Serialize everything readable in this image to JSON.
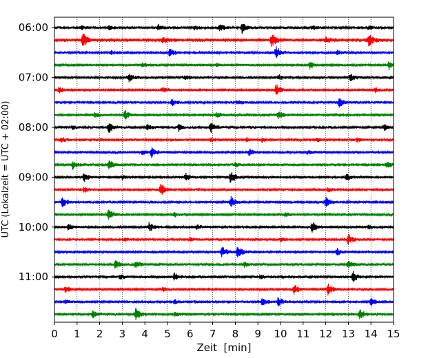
{
  "chart_data": {
    "type": "line",
    "title": "",
    "xlabel": "Zeit  [min]",
    "ylabel": "UTC (Lokalzeit = UTC + 02:00)",
    "xlim": [
      0,
      15
    ],
    "x_ticks": [
      "0",
      "1",
      "2",
      "3",
      "4",
      "5",
      "6",
      "7",
      "8",
      "9",
      "10",
      "11",
      "12",
      "13",
      "14",
      "15"
    ],
    "y_tick_labels": [
      "06:00",
      "07:00",
      "08:00",
      "09:00",
      "10:00",
      "11:00"
    ],
    "grid": "vertical dotted at each minute",
    "traces_per_hour": 4,
    "minutes_per_trace": 15,
    "start_time": "06:00",
    "colors": [
      "#000000",
      "#ff0000",
      "#0000ff",
      "#008000"
    ],
    "series": [
      {
        "start": "06:00",
        "color": "#000000",
        "noise": 2,
        "events": [
          {
            "t": 1.2,
            "amp": 3
          },
          {
            "t": 2.4,
            "amp": 3
          },
          {
            "t": 4.6,
            "amp": 4
          },
          {
            "t": 6.2,
            "amp": 3
          },
          {
            "t": 7.3,
            "amp": 6
          },
          {
            "t": 8.3,
            "amp": 8
          },
          {
            "t": 11.4,
            "amp": 3
          },
          {
            "t": 13.9,
            "amp": 3
          }
        ]
      },
      {
        "start": "06:15",
        "color": "#ff0000",
        "noise": 3,
        "events": [
          {
            "t": 1.25,
            "amp": 10
          },
          {
            "t": 4.8,
            "amp": 3
          },
          {
            "t": 9.6,
            "amp": 9
          },
          {
            "t": 12.0,
            "amp": 3
          },
          {
            "t": 13.9,
            "amp": 9
          }
        ]
      },
      {
        "start": "06:30",
        "color": "#0000ff",
        "noise": 2,
        "events": [
          {
            "t": 2.5,
            "amp": 3
          },
          {
            "t": 5.1,
            "amp": 7
          },
          {
            "t": 9.8,
            "amp": 9
          },
          {
            "t": 12.5,
            "amp": 3
          }
        ]
      },
      {
        "start": "06:45",
        "color": "#008000",
        "noise": 2,
        "events": [
          {
            "t": 3.9,
            "amp": 3
          },
          {
            "t": 7.2,
            "amp": 3
          },
          {
            "t": 11.3,
            "amp": 6
          },
          {
            "t": 14.8,
            "amp": 6
          }
        ]
      },
      {
        "start": "07:00",
        "color": "#000000",
        "noise": 2,
        "events": [
          {
            "t": 3.3,
            "amp": 6
          },
          {
            "t": 5.8,
            "amp": 3
          },
          {
            "t": 9.9,
            "amp": 4
          },
          {
            "t": 13.1,
            "amp": 5
          }
        ]
      },
      {
        "start": "07:15",
        "color": "#ff0000",
        "noise": 2,
        "events": [
          {
            "t": 0.2,
            "amp": 4
          },
          {
            "t": 4.8,
            "amp": 4
          },
          {
            "t": 9.8,
            "amp": 9
          },
          {
            "t": 14.2,
            "amp": 3
          }
        ]
      },
      {
        "start": "07:30",
        "color": "#0000ff",
        "noise": 2,
        "events": [
          {
            "t": 5.2,
            "amp": 5
          },
          {
            "t": 8.1,
            "amp": 3
          },
          {
            "t": 12.6,
            "amp": 7
          }
        ]
      },
      {
        "start": "07:45",
        "color": "#008000",
        "noise": 2,
        "events": [
          {
            "t": 1.8,
            "amp": 4
          },
          {
            "t": 3.1,
            "amp": 7
          },
          {
            "t": 7.2,
            "amp": 3
          },
          {
            "t": 9.9,
            "amp": 6
          }
        ]
      },
      {
        "start": "08:00",
        "color": "#000000",
        "noise": 2,
        "events": [
          {
            "t": 0.8,
            "amp": 3
          },
          {
            "t": 2.4,
            "amp": 8
          },
          {
            "t": 4.1,
            "amp": 4
          },
          {
            "t": 5.5,
            "amp": 5
          },
          {
            "t": 6.9,
            "amp": 8
          },
          {
            "t": 14.6,
            "amp": 4
          }
        ]
      },
      {
        "start": "08:15",
        "color": "#ff0000",
        "noise": 2,
        "events": [
          {
            "t": 0.3,
            "amp": 4
          },
          {
            "t": 6.9,
            "amp": 3
          },
          {
            "t": 8.5,
            "amp": 3
          },
          {
            "t": 9.2,
            "amp": 3
          },
          {
            "t": 11.6,
            "amp": 3
          },
          {
            "t": 13.4,
            "amp": 3
          }
        ]
      },
      {
        "start": "08:30",
        "color": "#0000ff",
        "noise": 2,
        "events": [
          {
            "t": 3.9,
            "amp": 3
          },
          {
            "t": 4.3,
            "amp": 7
          },
          {
            "t": 8.6,
            "amp": 5
          },
          {
            "t": 11.2,
            "amp": 3
          }
        ]
      },
      {
        "start": "08:45",
        "color": "#008000",
        "noise": 2,
        "events": [
          {
            "t": 0.8,
            "amp": 6
          },
          {
            "t": 2.4,
            "amp": 7
          },
          {
            "t": 8.0,
            "amp": 3
          },
          {
            "t": 14.7,
            "amp": 5
          }
        ]
      },
      {
        "start": "09:00",
        "color": "#000000",
        "noise": 2,
        "events": [
          {
            "t": 1.3,
            "amp": 7
          },
          {
            "t": 3.0,
            "amp": 3
          },
          {
            "t": 5.8,
            "amp": 6
          },
          {
            "t": 7.8,
            "amp": 10
          },
          {
            "t": 12.9,
            "amp": 5
          }
        ]
      },
      {
        "start": "09:15",
        "color": "#ff0000",
        "noise": 2,
        "events": [
          {
            "t": 1.3,
            "amp": 4
          },
          {
            "t": 4.7,
            "amp": 9
          },
          {
            "t": 12.1,
            "amp": 3
          }
        ]
      },
      {
        "start": "09:30",
        "color": "#0000ff",
        "noise": 2,
        "events": [
          {
            "t": 0.35,
            "amp": 7
          },
          {
            "t": 7.8,
            "amp": 8
          },
          {
            "t": 12.0,
            "amp": 8
          }
        ]
      },
      {
        "start": "09:45",
        "color": "#008000",
        "noise": 2,
        "events": [
          {
            "t": 2.4,
            "amp": 7
          },
          {
            "t": 5.3,
            "amp": 3
          },
          {
            "t": 10.2,
            "amp": 3
          }
        ]
      },
      {
        "start": "10:00",
        "color": "#000000",
        "noise": 2,
        "events": [
          {
            "t": 0.6,
            "amp": 4
          },
          {
            "t": 4.2,
            "amp": 7
          },
          {
            "t": 6.3,
            "amp": 3
          },
          {
            "t": 11.4,
            "amp": 8
          },
          {
            "t": 13.9,
            "amp": 3
          }
        ]
      },
      {
        "start": "10:15",
        "color": "#ff0000",
        "noise": 2,
        "events": [
          {
            "t": 3.1,
            "amp": 3
          },
          {
            "t": 6.0,
            "amp": 3
          },
          {
            "t": 10.0,
            "amp": 3
          },
          {
            "t": 13.0,
            "amp": 8
          }
        ]
      },
      {
        "start": "10:30",
        "color": "#0000ff",
        "noise": 2,
        "events": [
          {
            "t": 7.4,
            "amp": 8
          },
          {
            "t": 8.1,
            "amp": 9
          },
          {
            "t": 12.5,
            "amp": 5
          }
        ]
      },
      {
        "start": "10:45",
        "color": "#008000",
        "noise": 2,
        "events": [
          {
            "t": 2.7,
            "amp": 7
          },
          {
            "t": 3.6,
            "amp": 6
          },
          {
            "t": 8.4,
            "amp": 4
          },
          {
            "t": 13.0,
            "amp": 6
          }
        ]
      },
      {
        "start": "11:00",
        "color": "#000000",
        "noise": 2,
        "events": [
          {
            "t": 2.9,
            "amp": 3
          },
          {
            "t": 5.3,
            "amp": 6
          },
          {
            "t": 9.1,
            "amp": 3
          },
          {
            "t": 13.2,
            "amp": 8
          }
        ]
      },
      {
        "start": "11:15",
        "color": "#ff0000",
        "noise": 2,
        "events": [
          {
            "t": 0.5,
            "amp": 5
          },
          {
            "t": 4.8,
            "amp": 3
          },
          {
            "t": 10.6,
            "amp": 7
          },
          {
            "t": 12.1,
            "amp": 8
          }
        ]
      },
      {
        "start": "11:30",
        "color": "#0000ff",
        "noise": 2,
        "events": [
          {
            "t": 0.5,
            "amp": 3
          },
          {
            "t": 5.3,
            "amp": 3
          },
          {
            "t": 9.2,
            "amp": 6
          },
          {
            "t": 9.9,
            "amp": 7
          },
          {
            "t": 14.0,
            "amp": 6
          }
        ]
      },
      {
        "start": "11:45",
        "color": "#008000",
        "noise": 2,
        "events": [
          {
            "t": 1.7,
            "amp": 5
          },
          {
            "t": 3.6,
            "amp": 9
          },
          {
            "t": 5.3,
            "amp": 3
          },
          {
            "t": 13.5,
            "amp": 8
          }
        ]
      }
    ]
  }
}
